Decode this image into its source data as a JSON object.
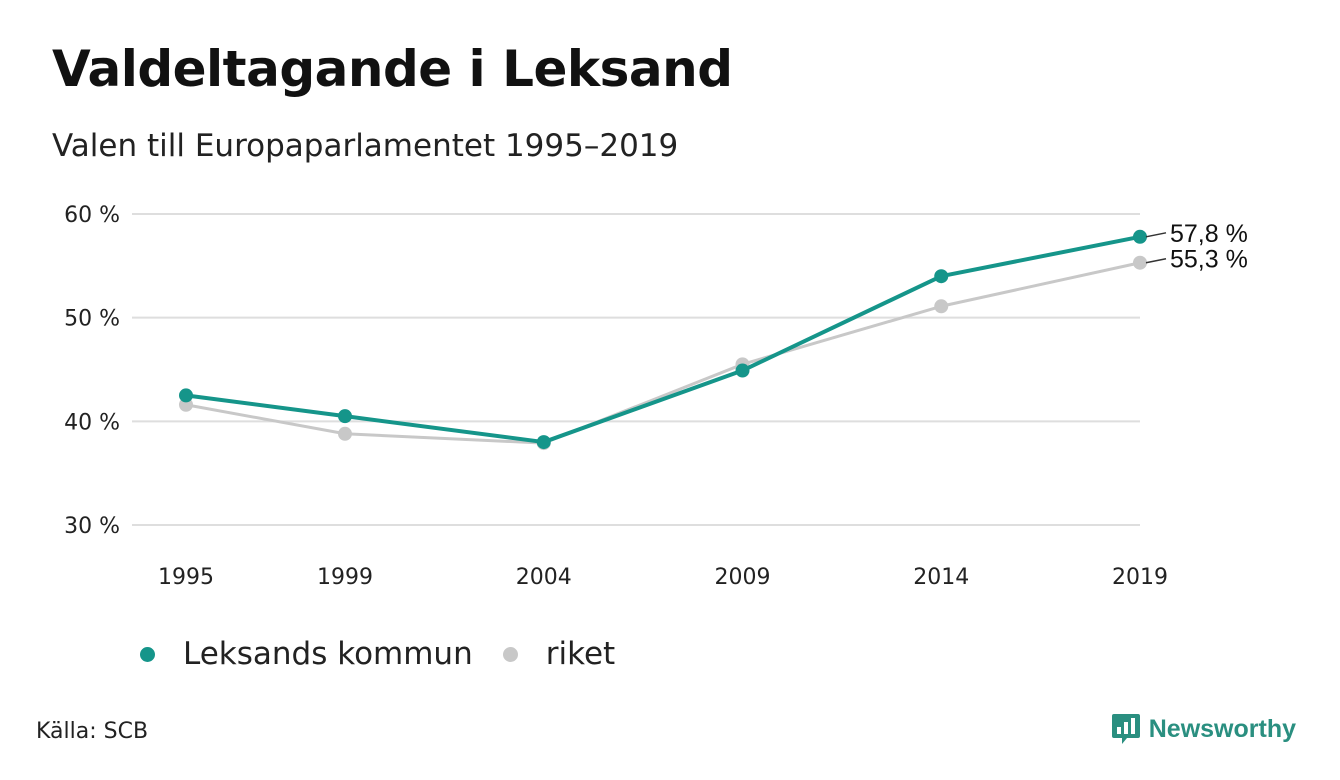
{
  "title": "Valdeltagande i Leksand",
  "subtitle": "Valen till Europaparlamentet 1995–2019",
  "source": "Källa: SCB",
  "brand": {
    "name": "Newsworthy",
    "icon": "newsworthy-logo-icon",
    "color": "#2a8f80"
  },
  "colors": {
    "kommun": "#15958a",
    "riket": "#c8c8c8",
    "grid": "#dedede"
  },
  "chart_data": {
    "type": "line",
    "categories": [
      "1995",
      "1999",
      "2004",
      "2009",
      "2014",
      "2019"
    ],
    "x": [
      1995,
      1999,
      2004,
      2009,
      2014,
      2019
    ],
    "ylim": [
      30,
      60
    ],
    "yticks": [
      30,
      40,
      50,
      60
    ],
    "ytick_labels": [
      "30 %",
      "40 %",
      "50 %",
      "60 %"
    ],
    "grid": true,
    "legend_position": "bottom-left",
    "series": [
      {
        "name": "Leksands kommun",
        "values": [
          42.5,
          40.5,
          38.0,
          44.9,
          54.0,
          57.8
        ],
        "end_label": "57,8 %"
      },
      {
        "name": "riket",
        "values": [
          41.6,
          38.8,
          37.9,
          45.5,
          51.1,
          55.3
        ],
        "end_label": "55,3 %"
      }
    ]
  }
}
